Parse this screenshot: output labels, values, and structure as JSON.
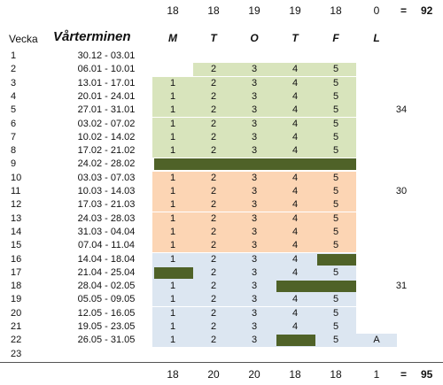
{
  "header": {
    "top_counts": [
      "18",
      "18",
      "19",
      "19",
      "18",
      "0"
    ],
    "top_equals": "=",
    "top_total": "92",
    "vecka_label": "Vecka",
    "term_title": "Vårterminen",
    "days": [
      "M",
      "T",
      "O",
      "T",
      "F",
      "L"
    ]
  },
  "footer": {
    "bottom_counts": [
      "18",
      "20",
      "20",
      "18",
      "18",
      "1"
    ],
    "bottom_equals": "=",
    "bottom_total": "95"
  },
  "colors": {
    "green_bg": "#d8e4bc",
    "peach_bg": "#fcd5b4",
    "blue_bg": "#dce6f1",
    "dark_fill": "#4f6228"
  },
  "rows": [
    {
      "week": "1",
      "dates": "30.12 - 03.01",
      "cells": [
        "",
        "",
        "",
        "",
        "",
        ""
      ],
      "note": ""
    },
    {
      "week": "2",
      "dates": "06.01 - 10.01",
      "cells": [
        "",
        "2",
        "3",
        "4",
        "5",
        ""
      ],
      "note": ""
    },
    {
      "week": "3",
      "dates": "13.01 - 17.01",
      "cells": [
        "1",
        "2",
        "3",
        "4",
        "5",
        ""
      ],
      "note": ""
    },
    {
      "week": "4",
      "dates": "20.01 - 24.01",
      "cells": [
        "1",
        "2",
        "3",
        "4",
        "5",
        ""
      ],
      "note": ""
    },
    {
      "week": "5",
      "dates": "27.01 - 31.01",
      "cells": [
        "1",
        "2",
        "3",
        "4",
        "5",
        ""
      ],
      "note": "34"
    },
    {
      "week": "6",
      "dates": "03.02 - 07.02",
      "cells": [
        "1",
        "2",
        "3",
        "4",
        "5",
        ""
      ],
      "note": ""
    },
    {
      "week": "7",
      "dates": "10.02 - 14.02",
      "cells": [
        "1",
        "2",
        "3",
        "4",
        "5",
        ""
      ],
      "note": ""
    },
    {
      "week": "8",
      "dates": "17.02 - 21.02",
      "cells": [
        "1",
        "2",
        "3",
        "4",
        "5",
        ""
      ],
      "note": ""
    },
    {
      "week": "9",
      "dates": "24.02 - 28.02",
      "cells": [
        "",
        "",
        "",
        "",
        "",
        ""
      ],
      "note": ""
    },
    {
      "week": "10",
      "dates": "03.03 - 07.03",
      "cells": [
        "1",
        "2",
        "3",
        "4",
        "5",
        ""
      ],
      "note": ""
    },
    {
      "week": "11",
      "dates": "10.03 - 14.03",
      "cells": [
        "1",
        "2",
        "3",
        "4",
        "5",
        ""
      ],
      "note": "30"
    },
    {
      "week": "12",
      "dates": "17.03 - 21.03",
      "cells": [
        "1",
        "2",
        "3",
        "4",
        "5",
        ""
      ],
      "note": ""
    },
    {
      "week": "13",
      "dates": "24.03 - 28.03",
      "cells": [
        "1",
        "2",
        "3",
        "4",
        "5",
        ""
      ],
      "note": ""
    },
    {
      "week": "14",
      "dates": "31.03 - 04.04",
      "cells": [
        "1",
        "2",
        "3",
        "4",
        "5",
        ""
      ],
      "note": ""
    },
    {
      "week": "15",
      "dates": "07.04 - 11.04",
      "cells": [
        "1",
        "2",
        "3",
        "4",
        "5",
        ""
      ],
      "note": ""
    },
    {
      "week": "16",
      "dates": "14.04 - 18.04",
      "cells": [
        "1",
        "2",
        "3",
        "4",
        "",
        ""
      ],
      "note": ""
    },
    {
      "week": "17",
      "dates": "21.04 - 25.04",
      "cells": [
        "",
        "2",
        "3",
        "4",
        "5",
        ""
      ],
      "note": ""
    },
    {
      "week": "18",
      "dates": "28.04 - 02.05",
      "cells": [
        "1",
        "2",
        "3",
        "",
        "",
        ""
      ],
      "note": "31"
    },
    {
      "week": "19",
      "dates": "05.05 - 09.05",
      "cells": [
        "1",
        "2",
        "3",
        "4",
        "5",
        ""
      ],
      "note": ""
    },
    {
      "week": "20",
      "dates": "12.05 - 16.05",
      "cells": [
        "1",
        "2",
        "3",
        "4",
        "5",
        ""
      ],
      "note": ""
    },
    {
      "week": "21",
      "dates": "19.05 - 23.05",
      "cells": [
        "1",
        "2",
        "3",
        "4",
        "5",
        ""
      ],
      "note": ""
    },
    {
      "week": "22",
      "dates": "26.05 - 31.05",
      "cells": [
        "1",
        "2",
        "3",
        "",
        "5",
        "A"
      ],
      "note": ""
    },
    {
      "week": "23",
      "dates": "",
      "cells": [
        "",
        "",
        "",
        "",
        "",
        ""
      ],
      "note": ""
    }
  ]
}
